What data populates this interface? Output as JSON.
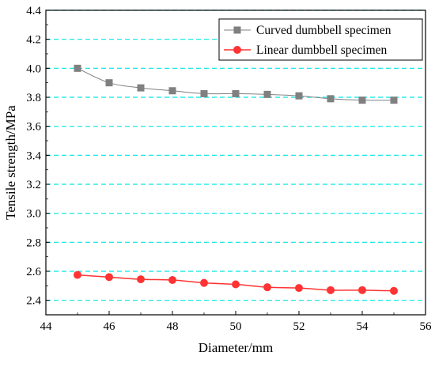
{
  "chart_data": {
    "type": "line",
    "title": "",
    "xlabel": "Diameter/mm",
    "ylabel": "Tensile strength/MPa",
    "xlim": [
      44,
      56
    ],
    "ylim": [
      2.3,
      4.4
    ],
    "x_ticks": [
      "44",
      "46",
      "48",
      "50",
      "52",
      "54",
      "56"
    ],
    "y_ticks": [
      "2.4",
      "2.6",
      "2.8",
      "3.0",
      "3.2",
      "3.4",
      "3.6",
      "3.8",
      "4.0",
      "4.2",
      "4.4"
    ],
    "grid": "horizontal dashed",
    "legend_position": "top-right",
    "colors": {
      "grid": "#00e5e5",
      "curved": "#808080",
      "linear": "#ff3333",
      "axis": "#000000"
    },
    "series": [
      {
        "name": "Curved dumbbell specimen",
        "marker": "square",
        "x": [
          45,
          46,
          47,
          48,
          49,
          50,
          51,
          52,
          53,
          54,
          55
        ],
        "values": [
          4.0,
          3.9,
          3.865,
          3.845,
          3.825,
          3.825,
          3.82,
          3.81,
          3.79,
          3.78,
          3.78
        ]
      },
      {
        "name": "Linear dumbbell specimen",
        "marker": "circle",
        "x": [
          45,
          46,
          47,
          48,
          49,
          50,
          51,
          52,
          53,
          54,
          55
        ],
        "values": [
          2.575,
          2.56,
          2.545,
          2.54,
          2.52,
          2.51,
          2.49,
          2.485,
          2.47,
          2.47,
          2.465
        ]
      }
    ]
  }
}
